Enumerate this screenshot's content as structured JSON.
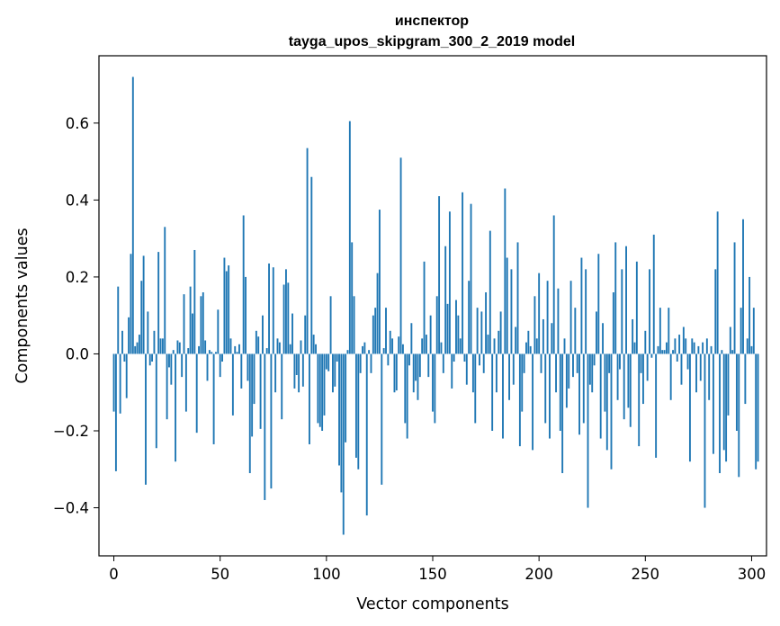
{
  "chart_data": {
    "type": "bar",
    "title": [
      "инспектор",
      "tayga_upos_skipgram_300_2_2019 model"
    ],
    "xlabel": "Vector components",
    "ylabel": "Components values",
    "xlim": [
      -7,
      307
    ],
    "ylim": [
      -0.525,
      0.775
    ],
    "xticks": [
      0,
      50,
      100,
      150,
      200,
      250,
      300
    ],
    "yticks": [
      -0.4,
      -0.2,
      0.0,
      0.2,
      0.4,
      0.6
    ],
    "ytick_labels": [
      "−0.4",
      "−0.2",
      "0.0",
      "0.2",
      "0.4",
      "0.6"
    ],
    "color": "#1f77b4",
    "grid": false,
    "values": [
      -0.15,
      -0.305,
      0.175,
      -0.155,
      0.06,
      -0.02,
      -0.115,
      0.095,
      0.26,
      0.72,
      0.02,
      0.03,
      0.05,
      0.19,
      0.255,
      -0.34,
      0.11,
      -0.03,
      -0.02,
      0.06,
      -0.245,
      0.265,
      0.04,
      0.04,
      0.33,
      -0.17,
      -0.035,
      -0.08,
      0.01,
      -0.28,
      0.035,
      0.03,
      -0.06,
      0.155,
      -0.15,
      0.015,
      0.175,
      0.105,
      0.27,
      -0.205,
      0.02,
      0.15,
      0.16,
      0.035,
      -0.07,
      0.01,
      0.005,
      -0.235,
      0.005,
      0.115,
      -0.06,
      -0.02,
      0.25,
      0.215,
      0.23,
      0.04,
      -0.16,
      0.02,
      0.005,
      0.025,
      -0.09,
      0.36,
      0.2,
      -0.07,
      -0.31,
      -0.215,
      -0.13,
      0.06,
      0.045,
      -0.195,
      0.1,
      -0.38,
      0.015,
      0.235,
      -0.35,
      0.225,
      -0.1,
      0.04,
      0.03,
      -0.17,
      0.18,
      0.22,
      0.185,
      0.025,
      0.105,
      -0.09,
      -0.055,
      -0.1,
      0.035,
      -0.085,
      0.1,
      0.535,
      -0.235,
      0.46,
      0.05,
      0.025,
      -0.18,
      -0.19,
      -0.2,
      -0.16,
      -0.04,
      -0.045,
      0.15,
      -0.1,
      -0.085,
      -0.02,
      -0.29,
      -0.36,
      -0.47,
      -0.23,
      0.01,
      0.605,
      0.29,
      0.15,
      -0.27,
      -0.3,
      -0.05,
      0.02,
      0.03,
      -0.42,
      0.01,
      -0.05,
      0.1,
      0.12,
      0.21,
      0.375,
      -0.34,
      0.015,
      0.12,
      -0.03,
      0.06,
      0.04,
      -0.1,
      -0.095,
      0.045,
      0.51,
      0.025,
      -0.18,
      -0.22,
      -0.03,
      0.08,
      -0.1,
      -0.07,
      -0.12,
      -0.06,
      0.04,
      0.24,
      0.05,
      -0.06,
      0.1,
      -0.15,
      -0.18,
      0.15,
      0.41,
      0.03,
      -0.05,
      0.28,
      0.13,
      0.37,
      -0.09,
      -0.02,
      0.14,
      0.1,
      0.04,
      0.42,
      -0.02,
      -0.08,
      0.19,
      0.39,
      -0.1,
      -0.18,
      0.12,
      -0.03,
      0.11,
      -0.05,
      0.16,
      0.05,
      0.32,
      -0.2,
      0.04,
      -0.1,
      0.06,
      0.11,
      -0.22,
      0.43,
      0.25,
      -0.12,
      0.22,
      -0.08,
      0.07,
      0.29,
      -0.24,
      -0.15,
      -0.05,
      0.03,
      0.06,
      0.02,
      -0.25,
      0.15,
      0.04,
      0.21,
      -0.05,
      0.09,
      -0.18,
      0.19,
      -0.22,
      0.08,
      0.36,
      -0.1,
      0.17,
      -0.2,
      -0.31,
      0.04,
      -0.14,
      -0.09,
      0.19,
      -0.06,
      0.12,
      -0.05,
      -0.21,
      0.25,
      -0.18,
      0.22,
      -0.4,
      -0.08,
      -0.1,
      -0.03,
      0.11,
      0.26,
      -0.22,
      0.08,
      -0.15,
      -0.25,
      -0.05,
      -0.3,
      0.16,
      0.29,
      -0.12,
      -0.04,
      0.22,
      -0.17,
      0.28,
      -0.14,
      -0.19,
      0.09,
      0.03,
      0.24,
      -0.24,
      -0.05,
      -0.13,
      0.06,
      -0.07,
      0.22,
      -0.01,
      0.31,
      -0.27,
      0.02,
      0.12,
      0.01,
      0.01,
      0.03,
      0.12,
      -0.12,
      0.01,
      0.04,
      -0.02,
      0.05,
      -0.08,
      0.07,
      0.04,
      -0.04,
      -0.28,
      0.04,
      0.03,
      -0.1,
      0.02,
      -0.07,
      0.03,
      -0.4,
      0.04,
      -0.12,
      0.02,
      -0.26,
      0.22,
      0.37,
      -0.31,
      0.01,
      -0.25,
      -0.28,
      -0.16,
      0.07,
      0.01,
      0.29,
      -0.2,
      -0.32,
      0.12,
      0.35,
      -0.13,
      0.04,
      0.2,
      0.02,
      0.12,
      -0.3,
      -0.28
    ]
  }
}
